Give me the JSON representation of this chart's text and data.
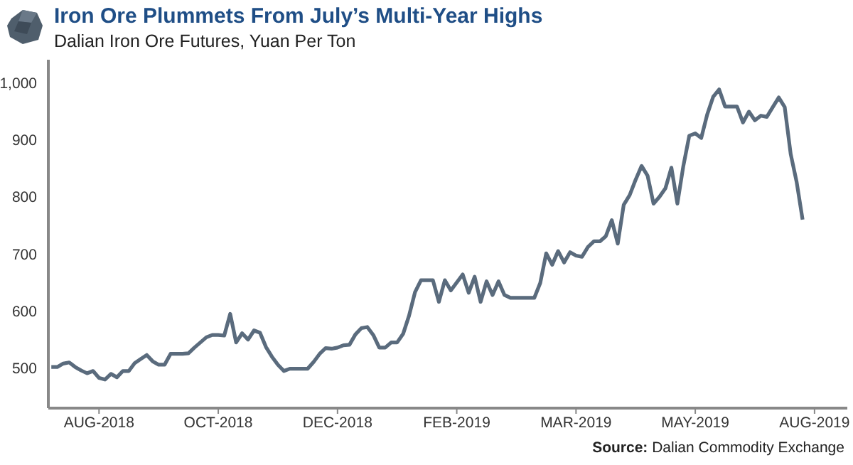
{
  "chart_data": {
    "type": "line",
    "title": "Iron Ore Plummets From July’s Multi-Year Highs",
    "subtitle": "Dalian Iron Ore Futures, Yuan Per Ton",
    "annotations": [
      "Source: Dalian Commodity Exchange"
    ],
    "categories": [
      null,
      null,
      null,
      null,
      null,
      null,
      null,
      null,
      "AUG-2018",
      null,
      null,
      null,
      null,
      null,
      null,
      null,
      null,
      null,
      null,
      null,
      null,
      null,
      null,
      null,
      null,
      null,
      null,
      null,
      "OCT-2018",
      null,
      null,
      null,
      null,
      null,
      null,
      null,
      null,
      null,
      null,
      null,
      null,
      null,
      null,
      null,
      null,
      null,
      null,
      null,
      "DEC-2018",
      null,
      null,
      null,
      null,
      null,
      null,
      null,
      null,
      null,
      null,
      null,
      null,
      null,
      null,
      null,
      null,
      null,
      null,
      null,
      "FEB-2019",
      null,
      null,
      null,
      null,
      null,
      null,
      null,
      null,
      null,
      null,
      null,
      null,
      null,
      null,
      null,
      null,
      null,
      null,
      null,
      "MAR-2019",
      null,
      null,
      null,
      null,
      null,
      null,
      null,
      null,
      null,
      null,
      null,
      null,
      null,
      null,
      null,
      null,
      null,
      null,
      null,
      "MAY-2019",
      null,
      null,
      null,
      null,
      null,
      null,
      null,
      null,
      null,
      null,
      null,
      null,
      null,
      null,
      null,
      null,
      null,
      null,
      null,
      "AUG-2019",
      null,
      null,
      null,
      null,
      null
    ],
    "series": [
      {
        "color": "#5a6b7d",
        "values": [
          502,
          502,
          508,
          510,
          502,
          496,
          491,
          495,
          483,
          480,
          490,
          484,
          495,
          495,
          509,
          516,
          523,
          512,
          506,
          506,
          525,
          525,
          525,
          526,
          536,
          545,
          554,
          558,
          558,
          557,
          595,
          545,
          561,
          550,
          566,
          562,
          537,
          520,
          506,
          495,
          499,
          499,
          499,
          499,
          511,
          525,
          535,
          534,
          536,
          540,
          541,
          559,
          570,
          572,
          558,
          536,
          536,
          545,
          545,
          560,
          592,
          633,
          654,
          654,
          654,
          616,
          654,
          636,
          650,
          664,
          632,
          660,
          616,
          652,
          628,
          652,
          628,
          623,
          623,
          623,
          623,
          623,
          649,
          701,
          681,
          705,
          685,
          703,
          697,
          695,
          712,
          722,
          722,
          731,
          759,
          718,
          786,
          803,
          830,
          854,
          837,
          788,
          800,
          815,
          851,
          788,
          854,
          907,
          911,
          903,
          944,
          975,
          988,
          958,
          958,
          958,
          930,
          949,
          934,
          942,
          940,
          957,
          974,
          957,
          875,
          826,
          760,
          null,
          null,
          null,
          null,
          null,
          null,
          null
        ]
      }
    ],
    "ylim": [
      430,
      1040
    ],
    "yticks": [
      500,
      600,
      700,
      800,
      900,
      {
        "value": 1000,
        "label": "1,000"
      }
    ],
    "grid": false,
    "legend": false,
    "marker": "none",
    "line_style": "solid"
  }
}
